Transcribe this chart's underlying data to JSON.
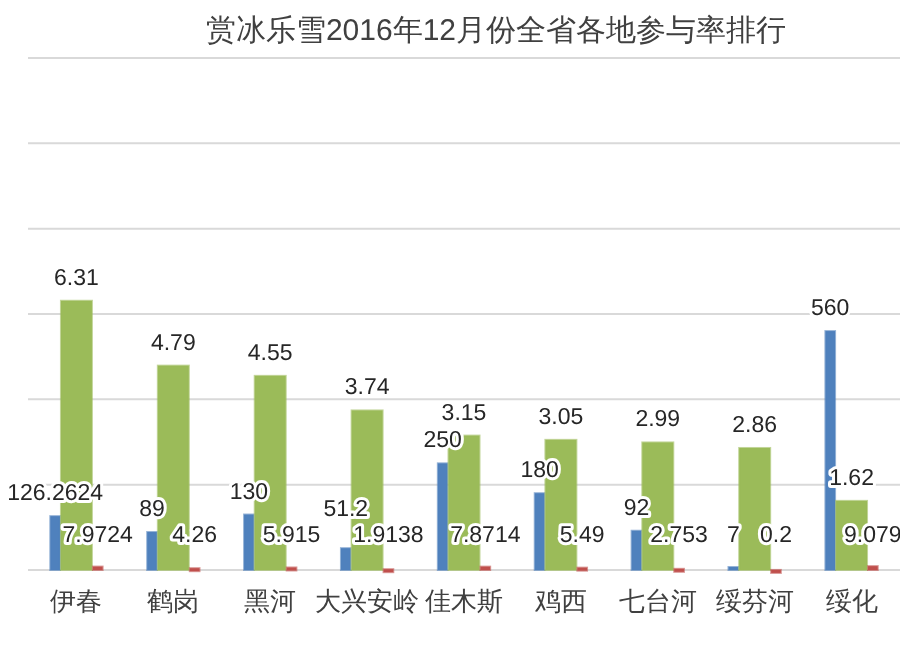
{
  "chart_data": {
    "type": "bar",
    "title": "赏冰乐雪2016年12月份全省各地参与率排行",
    "categories": [
      "伊春",
      "鹤岗",
      "黑河",
      "大兴安岭",
      "佳木斯",
      "鸡西",
      "七台河",
      "绥芬河",
      "绥化"
    ],
    "series": [
      {
        "color": "#4f81bd",
        "values": [
          126.2624,
          89,
          130,
          51.2,
          250,
          180,
          92,
          7,
          560
        ]
      },
      {
        "color": "#9bbb59",
        "axis": "y2",
        "values": [
          6.31,
          4.79,
          4.55,
          3.74,
          3.15,
          3.05,
          2.99,
          2.86,
          1.62
        ]
      },
      {
        "color": "#c0504d",
        "values": [
          7.9724,
          4.26,
          5.915,
          1.9138,
          7.8714,
          5.49,
          2.753,
          0.2,
          9.079
        ]
      }
    ],
    "ylim": [
      0,
      1200
    ],
    "yticks": [
      {
        "value": 0,
        "label": null
      },
      {
        "value": 200,
        "label": null
      },
      {
        "value": 400,
        "label": null
      },
      {
        "value": 600,
        "label": null
      },
      {
        "value": 800,
        "label": null
      },
      {
        "value": 1000,
        "label": null
      },
      {
        "value": 1200,
        "label": null
      }
    ],
    "y2lim": [
      0,
      12
    ],
    "grid": true,
    "tick_labels": false,
    "data_labels": true
  }
}
